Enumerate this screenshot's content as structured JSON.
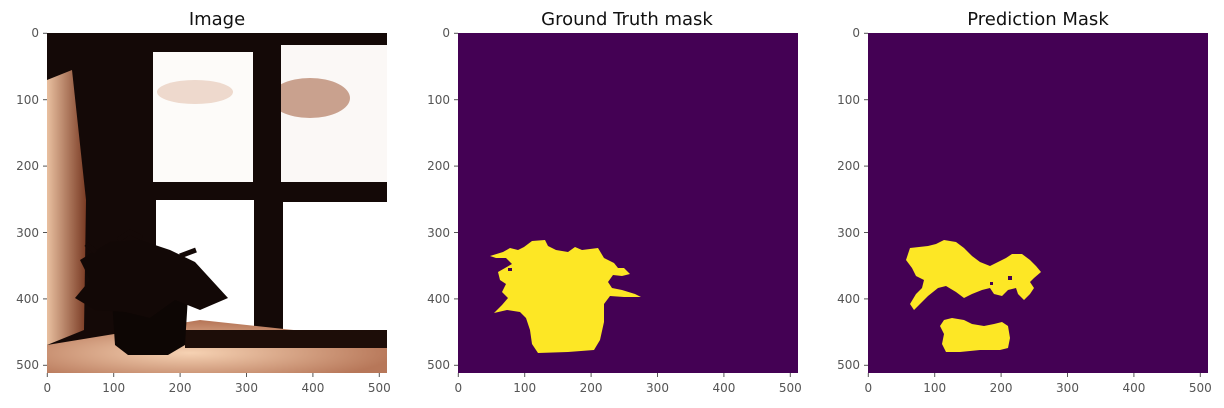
{
  "colors": {
    "mask_background": "#440154",
    "mask_foreground": "#fde725",
    "tick_color": "#555555",
    "title_color": "#111111"
  },
  "chart_data": [
    {
      "type": "image",
      "title": "Image",
      "xlim": [
        0,
        512
      ],
      "ylim": [
        512,
        0
      ],
      "xticks": [
        0,
        100,
        200,
        300,
        400,
        500
      ],
      "yticks": [
        0,
        100,
        200,
        300,
        400,
        500
      ],
      "content": "photo of a flower pot on a window sill"
    },
    {
      "type": "heatmap",
      "title": "Ground Truth mask",
      "xlim": [
        0,
        512
      ],
      "ylim": [
        512,
        0
      ],
      "xticks": [
        0,
        100,
        200,
        300,
        400,
        500
      ],
      "yticks": [
        0,
        100,
        200,
        300,
        400,
        500
      ],
      "classes": [
        0,
        1
      ],
      "colormap": "viridis"
    },
    {
      "type": "heatmap",
      "title": "Prediction Mask",
      "xlim": [
        0,
        512
      ],
      "ylim": [
        512,
        0
      ],
      "xticks": [
        0,
        100,
        200,
        300,
        400,
        500
      ],
      "yticks": [
        0,
        100,
        200,
        300,
        400,
        500
      ],
      "classes": [
        0,
        1
      ],
      "colormap": "viridis"
    }
  ]
}
